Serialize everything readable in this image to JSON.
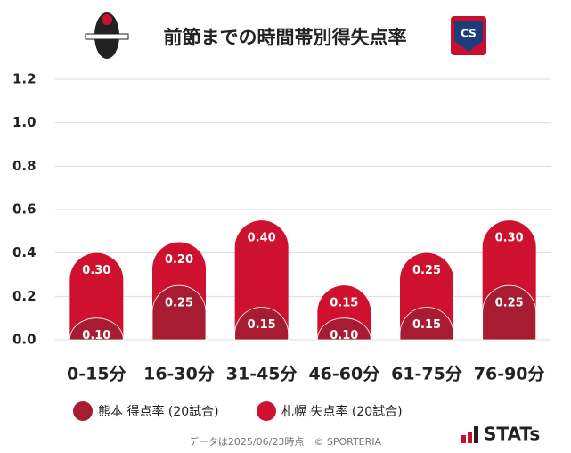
{
  "chart_data": {
    "type": "stacked_bar",
    "title": "前節までの時間帯別得失点率",
    "categories": [
      "0-15分",
      "16-30分",
      "31-45分",
      "46-60分",
      "61-75分",
      "76-90分"
    ],
    "series": [
      {
        "name": "熊本 得点率 (20試合)",
        "color": "#a81c31",
        "values": [
          0.1,
          0.25,
          0.15,
          0.1,
          0.15,
          0.25
        ],
        "value_labels": [
          "0.10",
          "0.25",
          "0.15",
          "0.10",
          "0.15",
          "0.25"
        ]
      },
      {
        "name": "札幌 失点率 (20試合)",
        "color": "#cf1130",
        "values": [
          0.3,
          0.2,
          0.4,
          0.15,
          0.25,
          0.3
        ],
        "value_labels": [
          "0.30",
          "0.20",
          "0.40",
          "0.15",
          "0.25",
          "0.30"
        ]
      }
    ],
    "ylim": [
      0,
      1.2
    ],
    "yticks": [
      {
        "value": 0,
        "label": "0.0"
      },
      0.2,
      0.4,
      0.6,
      0.8,
      {
        "value": 1,
        "label": "1.0"
      },
      1.2
    ],
    "grid": true,
    "footnote": "データは2025/06/23時点　© SPORTERIA",
    "logo_text": "STATs"
  }
}
